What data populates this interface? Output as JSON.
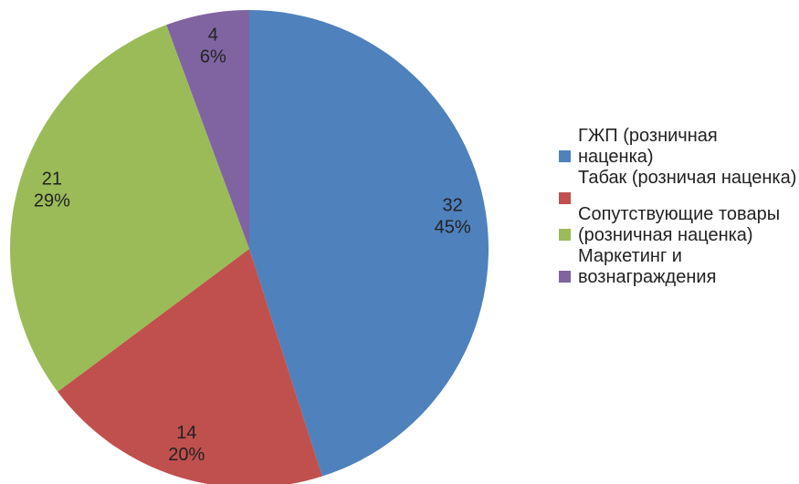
{
  "chart_data": {
    "type": "pie",
    "categories": [
      "ГЖП (розничная наценка)",
      "Табак (розничая наценка)",
      "Сопутствующие товары (розничная наценка)",
      "Маркетинг и вознаграждения"
    ],
    "values": [
      32,
      14,
      21,
      4
    ],
    "percent_labels": [
      "45%",
      "20%",
      "29%",
      "6%"
    ],
    "colors": [
      "#4f81bd",
      "#c0504d",
      "#9bbb59",
      "#8064a2"
    ],
    "legend": "right"
  }
}
